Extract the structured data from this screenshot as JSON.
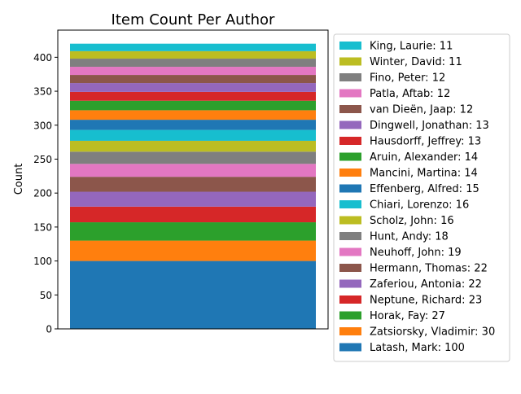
{
  "chart_data": {
    "type": "bar",
    "stacked": true,
    "title": "Item Count Per Author",
    "xlabel": "",
    "ylabel": "Count",
    "ylim": [
      0,
      440
    ],
    "yticks": [
      0,
      50,
      100,
      150,
      200,
      250,
      300,
      350,
      400
    ],
    "grid": false,
    "legend_position": "outside-right",
    "series": [
      {
        "name": "Latash, Mark",
        "value": 100,
        "color": "#1f77b4",
        "legend_label": "Latash, Mark: 100"
      },
      {
        "name": "Zatsiorsky, Vladimir",
        "value": 30,
        "color": "#ff7f0e",
        "legend_label": "Zatsiorsky, Vladimir: 30"
      },
      {
        "name": "Horak, Fay",
        "value": 27,
        "color": "#2ca02c",
        "legend_label": "Horak, Fay: 27"
      },
      {
        "name": "Neptune, Richard",
        "value": 23,
        "color": "#d62728",
        "legend_label": "Neptune, Richard: 23"
      },
      {
        "name": "Zaferiou, Antonia",
        "value": 22,
        "color": "#9467bd",
        "legend_label": "Zaferiou, Antonia: 22"
      },
      {
        "name": "Hermann, Thomas",
        "value": 22,
        "color": "#8c564b",
        "legend_label": "Hermann, Thomas: 22"
      },
      {
        "name": "Neuhoff, John",
        "value": 19,
        "color": "#e377c2",
        "legend_label": "Neuhoff, John: 19"
      },
      {
        "name": "Hunt, Andy",
        "value": 18,
        "color": "#7f7f7f",
        "legend_label": "Hunt, Andy: 18"
      },
      {
        "name": "Scholz, John",
        "value": 16,
        "color": "#bcbd22",
        "legend_label": "Scholz, John: 16"
      },
      {
        "name": "Chiari, Lorenzo",
        "value": 16,
        "color": "#17becf",
        "legend_label": "Chiari, Lorenzo: 16"
      },
      {
        "name": "Effenberg, Alfred",
        "value": 15,
        "color": "#1f77b4",
        "legend_label": "Effenberg, Alfred: 15"
      },
      {
        "name": "Mancini, Martina",
        "value": 14,
        "color": "#ff7f0e",
        "legend_label": "Mancini, Martina: 14"
      },
      {
        "name": "Aruin, Alexander",
        "value": 14,
        "color": "#2ca02c",
        "legend_label": "Aruin, Alexander: 14"
      },
      {
        "name": "Hausdorff, Jeffrey",
        "value": 13,
        "color": "#d62728",
        "legend_label": "Hausdorff, Jeffrey: 13"
      },
      {
        "name": "Dingwell, Jonathan",
        "value": 13,
        "color": "#9467bd",
        "legend_label": "Dingwell, Jonathan: 13"
      },
      {
        "name": "van Dieën, Jaap",
        "value": 12,
        "color": "#8c564b",
        "legend_label": "van Dieën, Jaap: 12"
      },
      {
        "name": "Patla, Aftab",
        "value": 12,
        "color": "#e377c2",
        "legend_label": "Patla, Aftab: 12"
      },
      {
        "name": "Fino, Peter",
        "value": 12,
        "color": "#7f7f7f",
        "legend_label": "Fino, Peter: 12"
      },
      {
        "name": "Winter, David",
        "value": 11,
        "color": "#bcbd22",
        "legend_label": "Winter, David: 11"
      },
      {
        "name": "King, Laurie",
        "value": 11,
        "color": "#17becf",
        "legend_label": "King, Laurie: 11"
      }
    ]
  }
}
